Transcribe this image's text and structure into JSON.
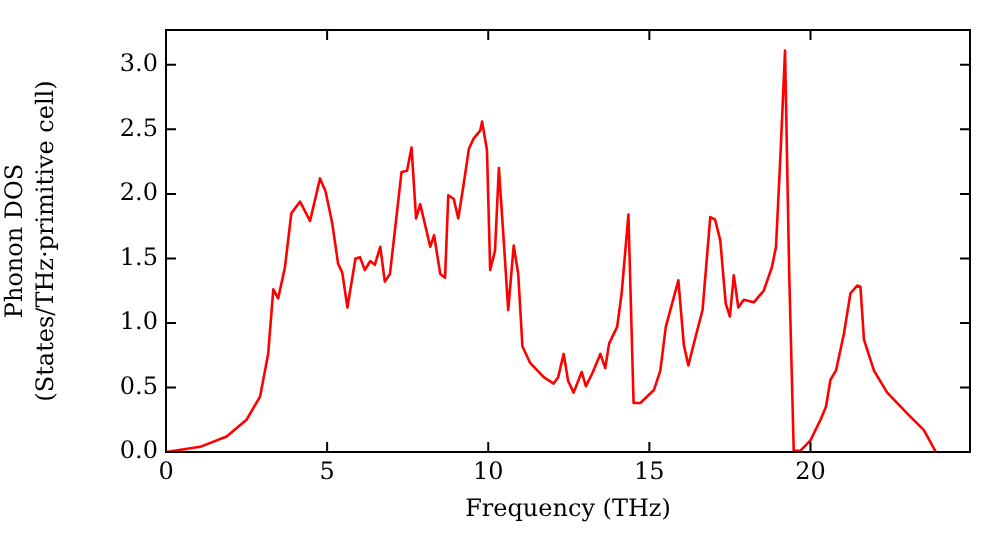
{
  "chart_data": {
    "type": "line",
    "xlabel": "Frequency (THz)",
    "ylabel": "Phonon DOS\n(States/THz·primitive cell)",
    "xlim": [
      0,
      24.95
    ],
    "xticks": [
      0,
      5,
      10,
      15,
      20
    ],
    "ylim": [
      0,
      3.27
    ],
    "yticks": [
      {
        "value": 0,
        "label": "0.0"
      },
      {
        "value": 0.5,
        "label": "0.5"
      },
      {
        "value": 1,
        "label": "1.0"
      },
      {
        "value": 1.5,
        "label": "1.5"
      },
      {
        "value": 2,
        "label": "2.0"
      },
      {
        "value": 2.5,
        "label": "2.5"
      },
      {
        "value": 3,
        "label": "3.0"
      }
    ],
    "grid": false,
    "legend": false,
    "marker": "none",
    "line_style": "solid",
    "series": [
      {
        "color": "#ff0000",
        "x": [
          0,
          1.06,
          1.88,
          2.5,
          2.92,
          3.17,
          3.33,
          3.48,
          3.69,
          3.89,
          4.16,
          4.47,
          4.78,
          4.95,
          5.16,
          5.34,
          5.47,
          5.63,
          5.88,
          6.02,
          6.17,
          6.34,
          6.48,
          6.65,
          6.79,
          6.95,
          7.31,
          7.48,
          7.62,
          7.76,
          7.89,
          8.2,
          8.32,
          8.51,
          8.66,
          8.76,
          8.93,
          9.07,
          9.24,
          9.4,
          9.55,
          9.75,
          9.81,
          9.96,
          10.06,
          10.21,
          10.33,
          10.48,
          10.62,
          10.79,
          10.93,
          11.06,
          11.3,
          11.72,
          12.03,
          12.17,
          12.34,
          12.48,
          12.65,
          12.9,
          13.03,
          13.23,
          13.48,
          13.63,
          13.75,
          14,
          14.14,
          14.35,
          14.51,
          14.72,
          15.14,
          15.34,
          15.51,
          15.9,
          16.07,
          16.21,
          16.38,
          16.65,
          16.89,
          17.04,
          17.2,
          17.37,
          17.5,
          17.62,
          17.76,
          17.93,
          18.24,
          18.55,
          18.8,
          18.93,
          19.07,
          19.21,
          19.34,
          19.48,
          19.69,
          20,
          20.31,
          20.48,
          20.62,
          20.79,
          21.04,
          21.24,
          21.45,
          21.55,
          21.66,
          21.97,
          22.38,
          23,
          23.52,
          23.89
        ],
        "values": [
          0,
          0.04,
          0.12,
          0.25,
          0.43,
          0.76,
          1.26,
          1.19,
          1.43,
          1.85,
          1.94,
          1.79,
          2.12,
          2.02,
          1.77,
          1.46,
          1.39,
          1.12,
          1.5,
          1.51,
          1.41,
          1.48,
          1.45,
          1.59,
          1.32,
          1.38,
          2.17,
          2.18,
          2.36,
          1.81,
          1.92,
          1.59,
          1.68,
          1.38,
          1.35,
          1.99,
          1.96,
          1.81,
          2.08,
          2.35,
          2.43,
          2.49,
          2.56,
          2.34,
          1.41,
          1.56,
          2.2,
          1.64,
          1.1,
          1.6,
          1.38,
          0.82,
          0.69,
          0.58,
          0.53,
          0.58,
          0.76,
          0.55,
          0.46,
          0.62,
          0.51,
          0.61,
          0.76,
          0.65,
          0.84,
          0.97,
          1.23,
          1.84,
          0.38,
          0.38,
          0.48,
          0.63,
          0.97,
          1.33,
          0.83,
          0.67,
          0.84,
          1.1,
          1.82,
          1.8,
          1.64,
          1.15,
          1.05,
          1.37,
          1.12,
          1.18,
          1.16,
          1.25,
          1.43,
          1.59,
          2.31,
          3.11,
          1.38,
          0.01,
          0.01,
          0.09,
          0.25,
          0.35,
          0.56,
          0.63,
          0.92,
          1.23,
          1.29,
          1.28,
          0.87,
          0.63,
          0.46,
          0.3,
          0.17,
          0
        ]
      }
    ]
  }
}
